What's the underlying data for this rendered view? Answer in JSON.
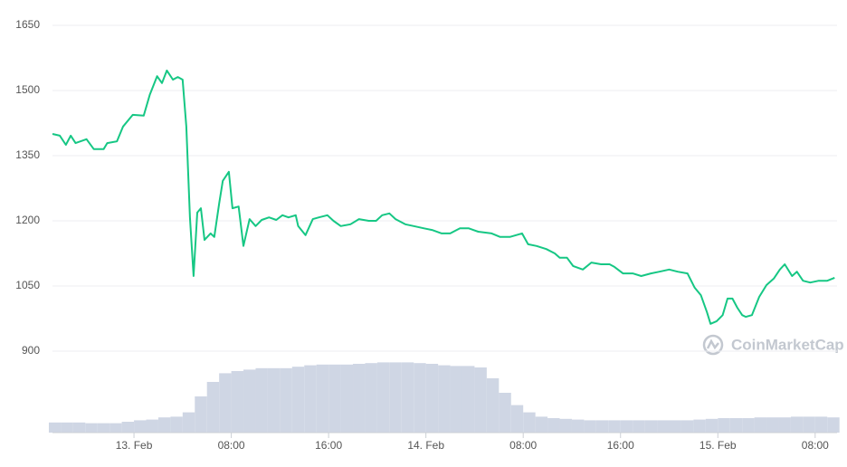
{
  "chart_data": {
    "type": "line",
    "watermark": "CoinMarketCap",
    "xlim": [
      -6.7,
      57.8
    ],
    "xticks": [
      {
        "value": 0,
        "label": "13. Feb"
      },
      {
        "value": 8,
        "label": "08:00"
      },
      {
        "value": 16,
        "label": "16:00"
      },
      {
        "value": 24,
        "label": "14. Feb"
      },
      {
        "value": 32,
        "label": "08:00"
      },
      {
        "value": 40,
        "label": "16:00"
      },
      {
        "value": 48,
        "label": "15. Feb"
      },
      {
        "value": 56,
        "label": "08:00"
      }
    ],
    "ylim": [
      712.5,
      1650
    ],
    "yticks": [
      900,
      1050,
      1200,
      1350,
      1500,
      1650
    ],
    "y2lim": [
      0,
      562.5
    ],
    "grid": true,
    "price": {
      "color": "#16c784",
      "x": [
        -6.7,
        -6.1,
        -5.6,
        -5.2,
        -4.8,
        -3.9,
        -3.3,
        -2.5,
        -2.2,
        -1.4,
        -0.9,
        -0.1,
        0.8,
        1.3,
        1.9,
        2.3,
        2.7,
        3.2,
        3.6,
        4.0,
        4.3,
        4.6,
        4.9,
        5.2,
        5.5,
        5.8,
        6.3,
        6.6,
        7.0,
        7.3,
        7.8,
        8.1,
        8.6,
        9.0,
        9.5,
        10.0,
        10.5,
        11.1,
        11.7,
        12.2,
        12.7,
        13.3,
        13.5,
        14.1,
        14.7,
        15.2,
        15.9,
        16.4,
        17.0,
        17.8,
        18.5,
        19.3,
        19.9,
        20.4,
        21.0,
        21.5,
        22.3,
        23.0,
        23.8,
        24.5,
        25.3,
        26.0,
        26.8,
        27.5,
        28.3,
        29.4,
        30.1,
        30.9,
        31.9,
        32.4,
        33.1,
        33.9,
        34.6,
        35.0,
        35.6,
        36.1,
        36.9,
        37.6,
        38.4,
        39.1,
        39.5,
        40.2,
        41.0,
        41.7,
        42.5,
        43.2,
        44.0,
        44.7,
        45.5,
        46.1,
        46.6,
        47.1,
        47.4,
        47.9,
        48.4,
        48.8,
        49.2,
        49.6,
        50.0,
        50.3,
        50.8,
        51.4,
        52.0,
        52.6,
        53.1,
        53.5,
        54.1,
        54.5,
        55.0,
        55.6,
        56.3,
        57.0,
        57.6
      ],
      "values": [
        1400,
        1396,
        1375,
        1396,
        1379,
        1388,
        1365,
        1365,
        1379,
        1383,
        1417,
        1444,
        1442,
        1490,
        1533,
        1517,
        1546,
        1525,
        1531,
        1525,
        1417,
        1208,
        1073,
        1219,
        1229,
        1156,
        1171,
        1163,
        1240,
        1292,
        1313,
        1229,
        1233,
        1142,
        1204,
        1188,
        1202,
        1208,
        1202,
        1213,
        1208,
        1213,
        1188,
        1167,
        1204,
        1208,
        1213,
        1200,
        1188,
        1192,
        1204,
        1200,
        1200,
        1213,
        1217,
        1204,
        1192,
        1188,
        1183,
        1179,
        1171,
        1171,
        1183,
        1183,
        1175,
        1171,
        1163,
        1163,
        1171,
        1146,
        1142,
        1135,
        1125,
        1115,
        1115,
        1096,
        1088,
        1104,
        1100,
        1100,
        1094,
        1079,
        1079,
        1073,
        1079,
        1083,
        1088,
        1083,
        1079,
        1046,
        1029,
        990,
        963,
        969,
        983,
        1021,
        1021,
        1000,
        983,
        979,
        983,
        1025,
        1052,
        1067,
        1088,
        1100,
        1073,
        1083,
        1062,
        1058,
        1062,
        1062,
        1069
      ]
    },
    "volume": {
      "type": "bar",
      "axis": "y2",
      "color": "#cfd6e4",
      "x": [
        -6.5,
        -5.5,
        -4.5,
        -3.5,
        -2.5,
        -1.5,
        -0.5,
        0.5,
        1.5,
        2.5,
        3.5,
        4.5,
        5.5,
        6.5,
        7.5,
        8.5,
        9.5,
        10.5,
        11.5,
        12.5,
        13.5,
        14.5,
        15.5,
        16.5,
        17.5,
        18.5,
        19.5,
        20.5,
        21.5,
        22.5,
        23.5,
        24.5,
        25.5,
        26.5,
        27.5,
        28.5,
        29.5,
        30.5,
        31.5,
        32.5,
        33.5,
        34.5,
        35.5,
        36.5,
        37.5,
        38.5,
        39.5,
        40.5,
        41.5,
        42.5,
        43.5,
        44.5,
        45.5,
        46.5,
        47.5,
        48.5,
        49.5,
        50.5,
        51.5,
        52.5,
        53.5,
        54.5,
        55.5,
        56.5,
        57.5
      ],
      "values": [
        14,
        14,
        14,
        13,
        13,
        13,
        15,
        17,
        18,
        21,
        22,
        28,
        50,
        70,
        82,
        85,
        87,
        89,
        89,
        89,
        91,
        93,
        94,
        94,
        94,
        95,
        96,
        97,
        97,
        97,
        96,
        95,
        93,
        92,
        92,
        90,
        75,
        55,
        38,
        28,
        22,
        20,
        19,
        18,
        17,
        17,
        17,
        17,
        17,
        17,
        17,
        17,
        17,
        18,
        19,
        20,
        20,
        20,
        21,
        21,
        21,
        22,
        22,
        22,
        21
      ]
    }
  }
}
